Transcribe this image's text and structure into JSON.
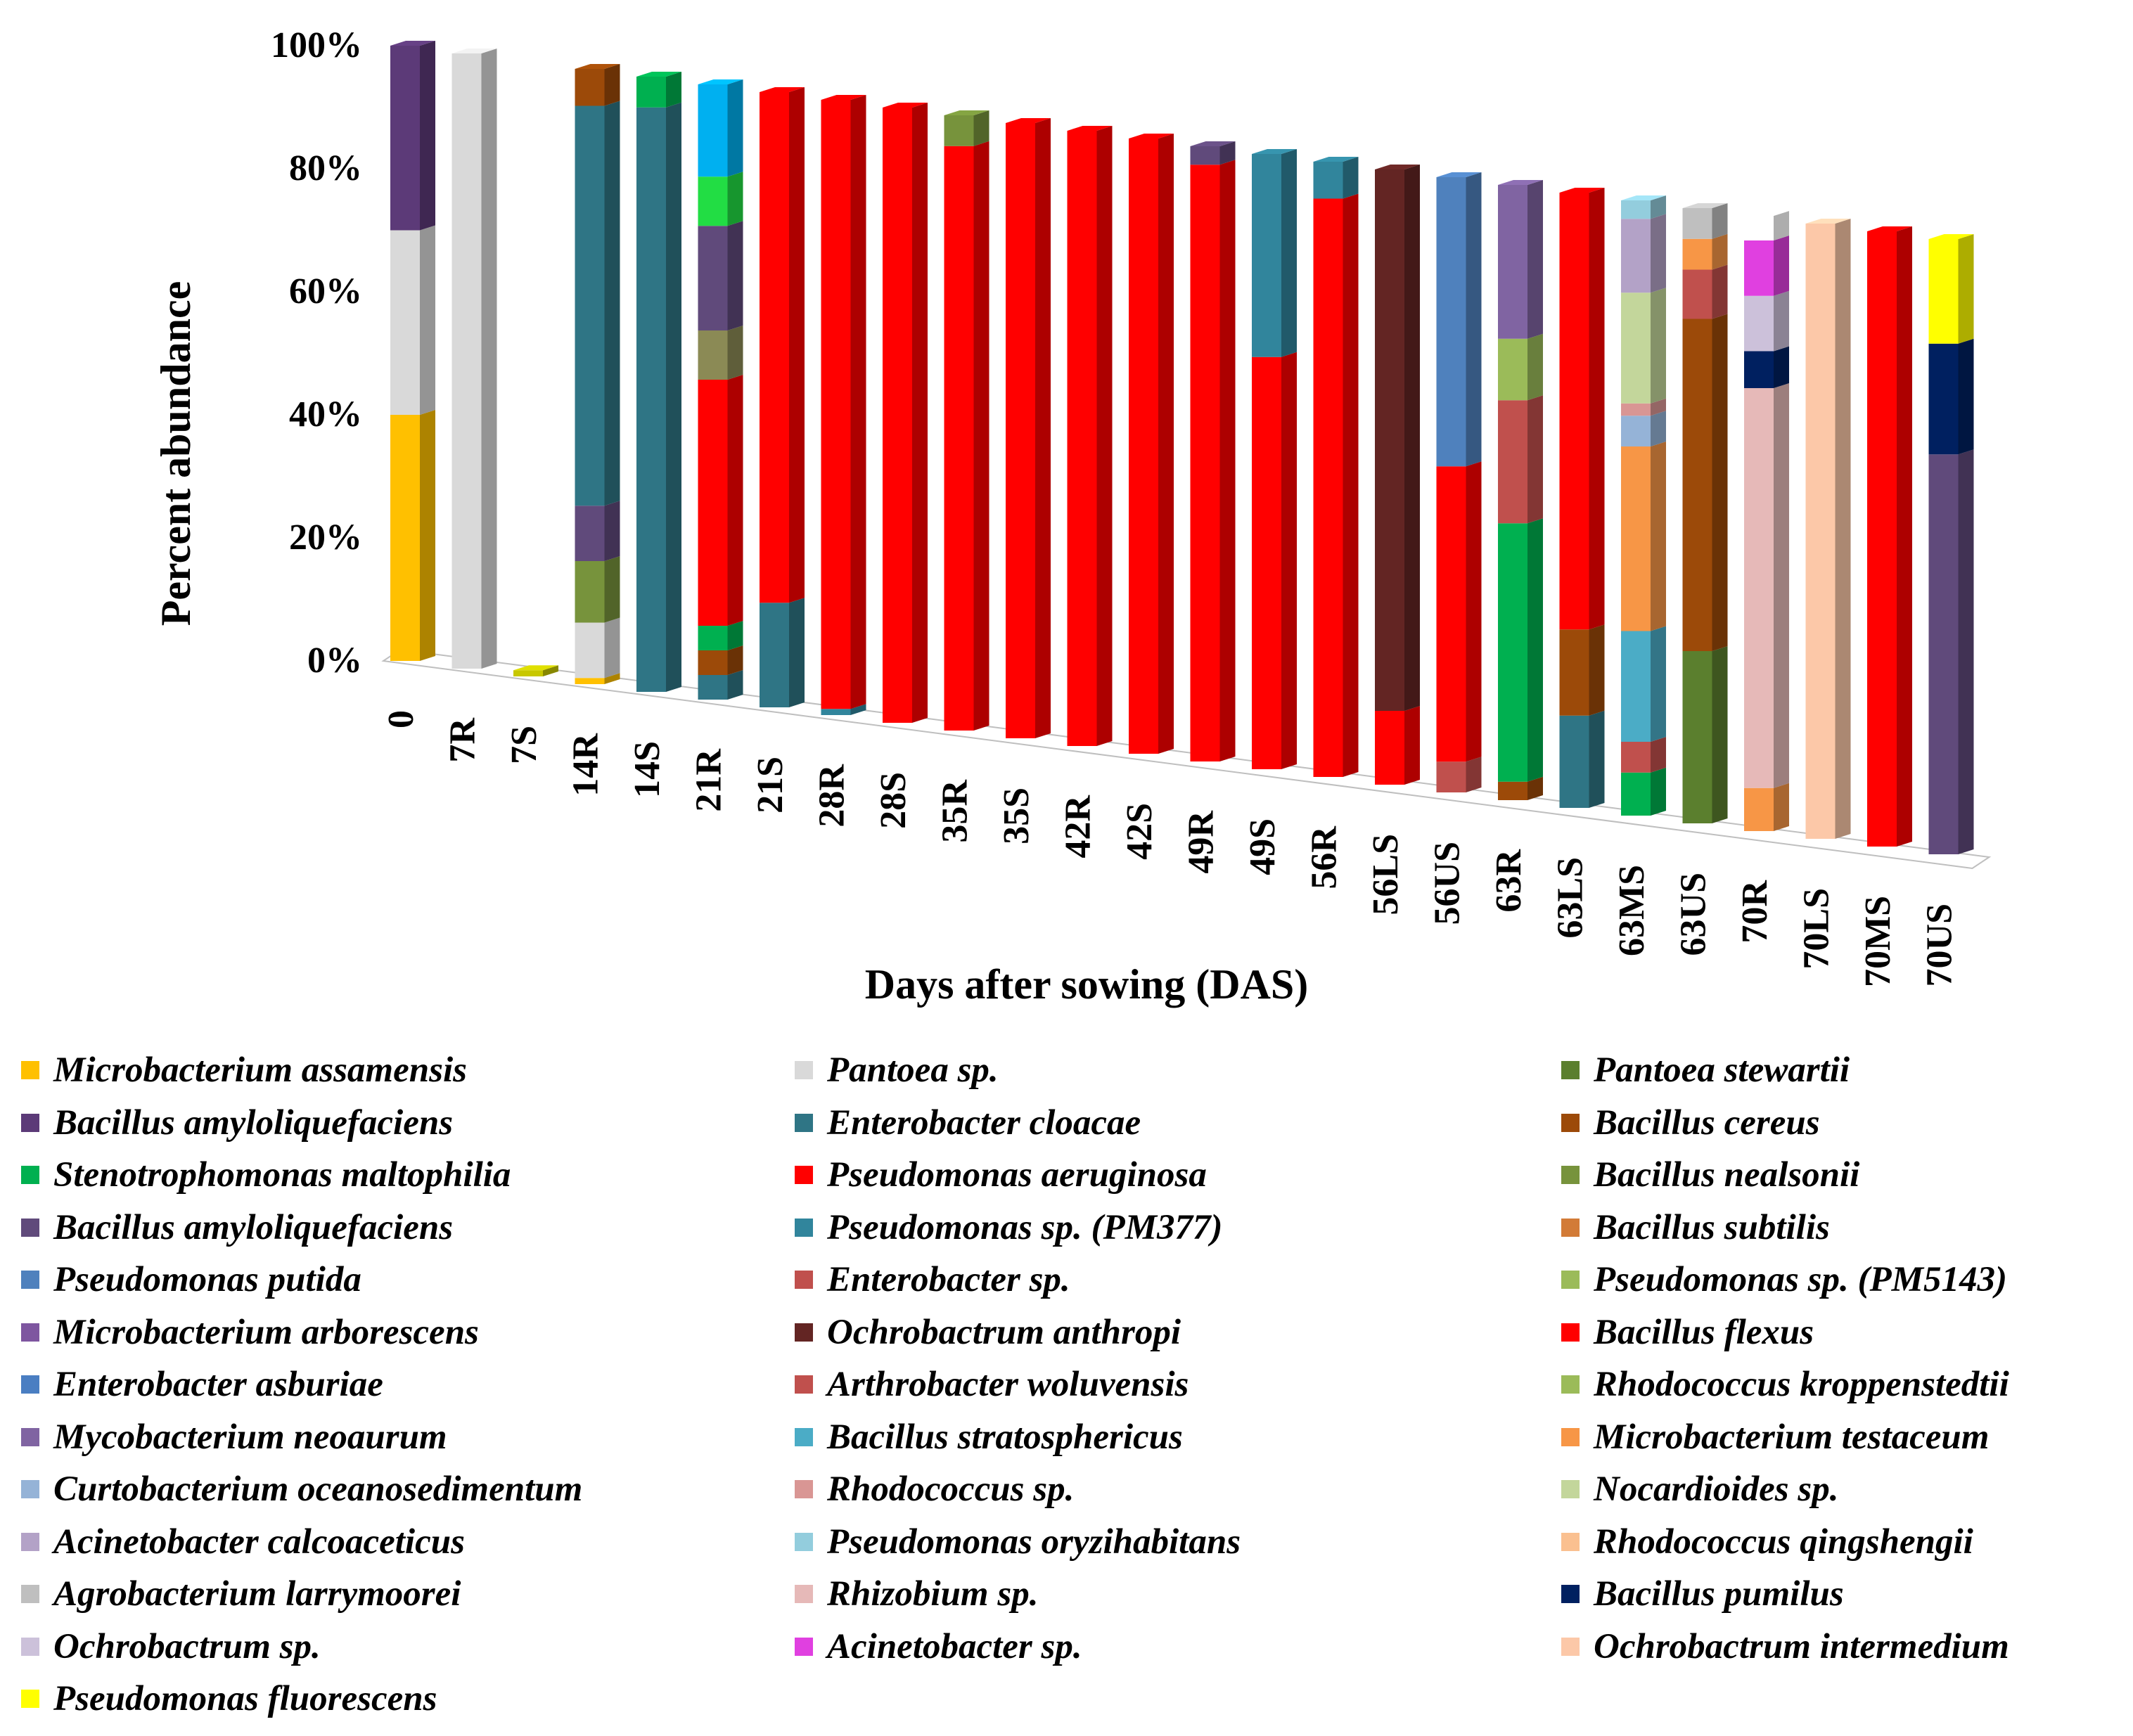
{
  "chart_data": {
    "type": "bar",
    "subtype": "3d-stacked-percent",
    "title": "",
    "xlabel": "Days after sowing (DAS)",
    "ylabel": "Percent abundance",
    "ylim": [
      0,
      100
    ],
    "yticks": [
      "0%",
      "20%",
      "40%",
      "60%",
      "80%",
      "100%"
    ],
    "categories": [
      "0",
      "7R",
      "7S",
      "14R",
      "14S",
      "21R",
      "21S",
      "28R",
      "28S",
      "35R",
      "35S",
      "42R",
      "42S",
      "49R",
      "49S",
      "56R",
      "56LS",
      "56US",
      "63R",
      "63LS",
      "63MS",
      "63US",
      "70R",
      "70LS",
      "70MS",
      "70US"
    ],
    "legend": [
      {
        "name": "Microbacterium assamensis",
        "color": "#FFC000"
      },
      {
        "name": "Pantoea sp.",
        "color": "#D9D9D9"
      },
      {
        "name": "Pantoea stewartii",
        "color": "#5B7F2E"
      },
      {
        "name": "Bacillus amyloliquefaciens",
        "color": "#5C3A78"
      },
      {
        "name": "Enterobacter cloacae",
        "color": "#2F7585"
      },
      {
        "name": "Bacillus cereus",
        "color": "#9C4A09"
      },
      {
        "name": "Stenotrophomonas maltophilia",
        "color": "#00B050"
      },
      {
        "name": "Pseudomonas aeruginosa",
        "color": "#FF0000"
      },
      {
        "name": "Bacillus nealsonii",
        "color": "#77933C"
      },
      {
        "name": "Bacillus amyloliquefaciens",
        "color": "#604A7B"
      },
      {
        "name": "Pseudomonas sp. (PM377)",
        "color": "#31859C"
      },
      {
        "name": "Bacillus subtilis",
        "color": "#D27B37"
      },
      {
        "name": "Pseudomonas putida",
        "color": "#4F81BD"
      },
      {
        "name": "Enterobacter sp.",
        "color": "#C0504D"
      },
      {
        "name": "Pseudomonas sp. (PM5143)",
        "color": "#9BBB59"
      },
      {
        "name": "Microbacterium arborescens",
        "color": "#7E56A0"
      },
      {
        "name": "Ochrobactrum anthropi",
        "color": "#632523"
      },
      {
        "name": "Bacillus flexus",
        "color": "#FF0000"
      },
      {
        "name": "Enterobacter asburiae",
        "color": "#4A7EC2"
      },
      {
        "name": "Arthrobacter woluvensis",
        "color": "#C0504D"
      },
      {
        "name": "Rhodococcus kroppenstedtii",
        "color": "#9BBB59"
      },
      {
        "name": "Mycobacterium neoaurum",
        "color": "#8064A2"
      },
      {
        "name": "Bacillus stratosphericus",
        "color": "#4BACC6"
      },
      {
        "name": "Microbacterium testaceum",
        "color": "#F79646"
      },
      {
        "name": "Curtobacterium oceanosedimentum",
        "color": "#95B3D7"
      },
      {
        "name": "Rhodococcus sp.",
        "color": "#D99694"
      },
      {
        "name": "Nocardioides sp.",
        "color": "#C3D69B"
      },
      {
        "name": "Acinetobacter calcoaceticus",
        "color": "#B3A2C7"
      },
      {
        "name": "Pseudomonas oryzihabitans",
        "color": "#93CDDD"
      },
      {
        "name": "Rhodococcus qingshengii",
        "color": "#FAC090"
      },
      {
        "name": "Agrobacterium larrymoorei",
        "color": "#BFBFBF"
      },
      {
        "name": "Rhizobium sp.",
        "color": "#E6B9B8"
      },
      {
        "name": "Bacillus pumilus",
        "color": "#002060"
      },
      {
        "name": "Ochrobactrum sp.",
        "color": "#CCC1DA"
      },
      {
        "name": "Acinetobacter sp.",
        "color": "#E040E0"
      },
      {
        "name": "Ochrobactrum intermedium",
        "color": "#FCC8A8"
      },
      {
        "name": "Pseudomonas fluorescens",
        "color": "#FFFF00"
      }
    ],
    "bars": [
      {
        "category": "0",
        "segments": [
          {
            "v": 40,
            "c": "#FFC000"
          },
          {
            "v": 30,
            "c": "#D9D9D9"
          },
          {
            "v": 30,
            "c": "#5C3A78"
          }
        ]
      },
      {
        "category": "7R",
        "segments": [
          {
            "v": 100,
            "c": "#D9D9D9"
          }
        ]
      },
      {
        "category": "7S",
        "segments": [
          {
            "v": 1,
            "c": "#C8C800"
          }
        ]
      },
      {
        "category": "14R",
        "segments": [
          {
            "v": 1,
            "c": "#FFC000"
          },
          {
            "v": 9,
            "c": "#D9D9D9"
          },
          {
            "v": 10,
            "c": "#77933C"
          },
          {
            "v": 9,
            "c": "#604A7B"
          },
          {
            "v": 65,
            "c": "#2F7585"
          },
          {
            "v": 6,
            "c": "#9C4A09"
          }
        ]
      },
      {
        "category": "14S",
        "segments": [
          {
            "v": 95,
            "c": "#2F7585"
          },
          {
            "v": 5,
            "c": "#00B050"
          }
        ]
      },
      {
        "category": "21R",
        "segments": [
          {
            "v": 4,
            "c": "#2F7585"
          },
          {
            "v": 4,
            "c": "#9C4A09"
          },
          {
            "v": 4,
            "c": "#00B050"
          },
          {
            "v": 40,
            "c": "#FF0000"
          },
          {
            "v": 8,
            "c": "#8B8A55"
          },
          {
            "v": 17,
            "c": "#604A7B"
          },
          {
            "v": 8,
            "c": "#22DD44"
          },
          {
            "v": 15,
            "c": "#00B0F0"
          }
        ]
      },
      {
        "category": "21S",
        "segments": [
          {
            "v": 17,
            "c": "#2F7585"
          },
          {
            "v": 83,
            "c": "#FF0000"
          }
        ]
      },
      {
        "category": "28R",
        "segments": [
          {
            "v": 1,
            "c": "#31859C"
          },
          {
            "v": 99,
            "c": "#FF0000"
          }
        ]
      },
      {
        "category": "28S",
        "segments": [
          {
            "v": 100,
            "c": "#FF0000"
          }
        ]
      },
      {
        "category": "35R",
        "segments": [
          {
            "v": 95,
            "c": "#FF0000"
          },
          {
            "v": 5,
            "c": "#77933C"
          }
        ]
      },
      {
        "category": "35S",
        "segments": [
          {
            "v": 100,
            "c": "#FF0000"
          }
        ]
      },
      {
        "category": "42R",
        "segments": [
          {
            "v": 100,
            "c": "#FF0000"
          }
        ]
      },
      {
        "category": "42S",
        "segments": [
          {
            "v": 100,
            "c": "#FF0000"
          }
        ]
      },
      {
        "category": "49R",
        "segments": [
          {
            "v": 97,
            "c": "#FF0000"
          },
          {
            "v": 3,
            "c": "#604A7B"
          }
        ]
      },
      {
        "category": "49S",
        "segments": [
          {
            "v": 67,
            "c": "#FF0000"
          },
          {
            "v": 33,
            "c": "#31859C"
          }
        ]
      },
      {
        "category": "56R",
        "segments": [
          {
            "v": 94,
            "c": "#FF0000"
          },
          {
            "v": 6,
            "c": "#31859C"
          }
        ]
      },
      {
        "category": "56LS",
        "segments": [
          {
            "v": 12,
            "c": "#FF0000"
          },
          {
            "v": 88,
            "c": "#632523"
          }
        ]
      },
      {
        "category": "56US",
        "segments": [
          {
            "v": 5,
            "c": "#C0504D"
          },
          {
            "v": 48,
            "c": "#FF0000"
          },
          {
            "v": 47,
            "c": "#4F81BD"
          }
        ]
      },
      {
        "category": "63R",
        "segments": [
          {
            "v": 3,
            "c": "#9C4A09"
          },
          {
            "v": 42,
            "c": "#00B050"
          },
          {
            "v": 20,
            "c": "#C0504D"
          },
          {
            "v": 10,
            "c": "#9BBB59"
          },
          {
            "v": 25,
            "c": "#8064A2"
          }
        ]
      },
      {
        "category": "63LS",
        "segments": [
          {
            "v": 15,
            "c": "#2F7585"
          },
          {
            "v": 14,
            "c": "#9C4A09"
          },
          {
            "v": 71,
            "c": "#FF0000"
          }
        ]
      },
      {
        "category": "63MS",
        "segments": [
          {
            "v": 7,
            "c": "#00B050"
          },
          {
            "v": 5,
            "c": "#C0504D"
          },
          {
            "v": 18,
            "c": "#4BACC6"
          },
          {
            "v": 30,
            "c": "#F79646"
          },
          {
            "v": 5,
            "c": "#95B3D7"
          },
          {
            "v": 2,
            "c": "#D99694"
          },
          {
            "v": 18,
            "c": "#C3D69B"
          },
          {
            "v": 12,
            "c": "#B3A2C7"
          },
          {
            "v": 3,
            "c": "#93CDDD"
          },
          {
            "v": 0,
            "c": "#FAC090"
          }
        ]
      },
      {
        "category": "63US",
        "segments": [
          {
            "v": 28,
            "c": "#5B7F2E"
          },
          {
            "v": 54,
            "c": "#9C4A09"
          },
          {
            "v": 8,
            "c": "#C0504D"
          },
          {
            "v": 5,
            "c": "#F79646"
          },
          {
            "v": 5,
            "c": "#BFBFBF"
          }
        ]
      },
      {
        "category": "70R",
        "segments": [
          {
            "v": 7,
            "c": "#F79646"
          },
          {
            "v": 65,
            "c": "#E6B9B8"
          },
          {
            "v": 6,
            "c": "#002060"
          },
          {
            "v": 9,
            "c": "#CCC1DA"
          },
          {
            "v": 9,
            "c": "#E040E0"
          },
          {
            "v": 4,
            "c": "#FFFFFF"
          }
        ]
      },
      {
        "category": "70LS",
        "segments": [
          {
            "v": 100,
            "c": "#FCC8A8"
          }
        ]
      },
      {
        "category": "70MS",
        "segments": [
          {
            "v": 100,
            "c": "#FF0000"
          }
        ]
      },
      {
        "category": "70US",
        "segments": [
          {
            "v": 65,
            "c": "#604A7B"
          },
          {
            "v": 18,
            "c": "#002060"
          },
          {
            "v": 17,
            "c": "#FFFF00"
          }
        ]
      }
    ]
  }
}
